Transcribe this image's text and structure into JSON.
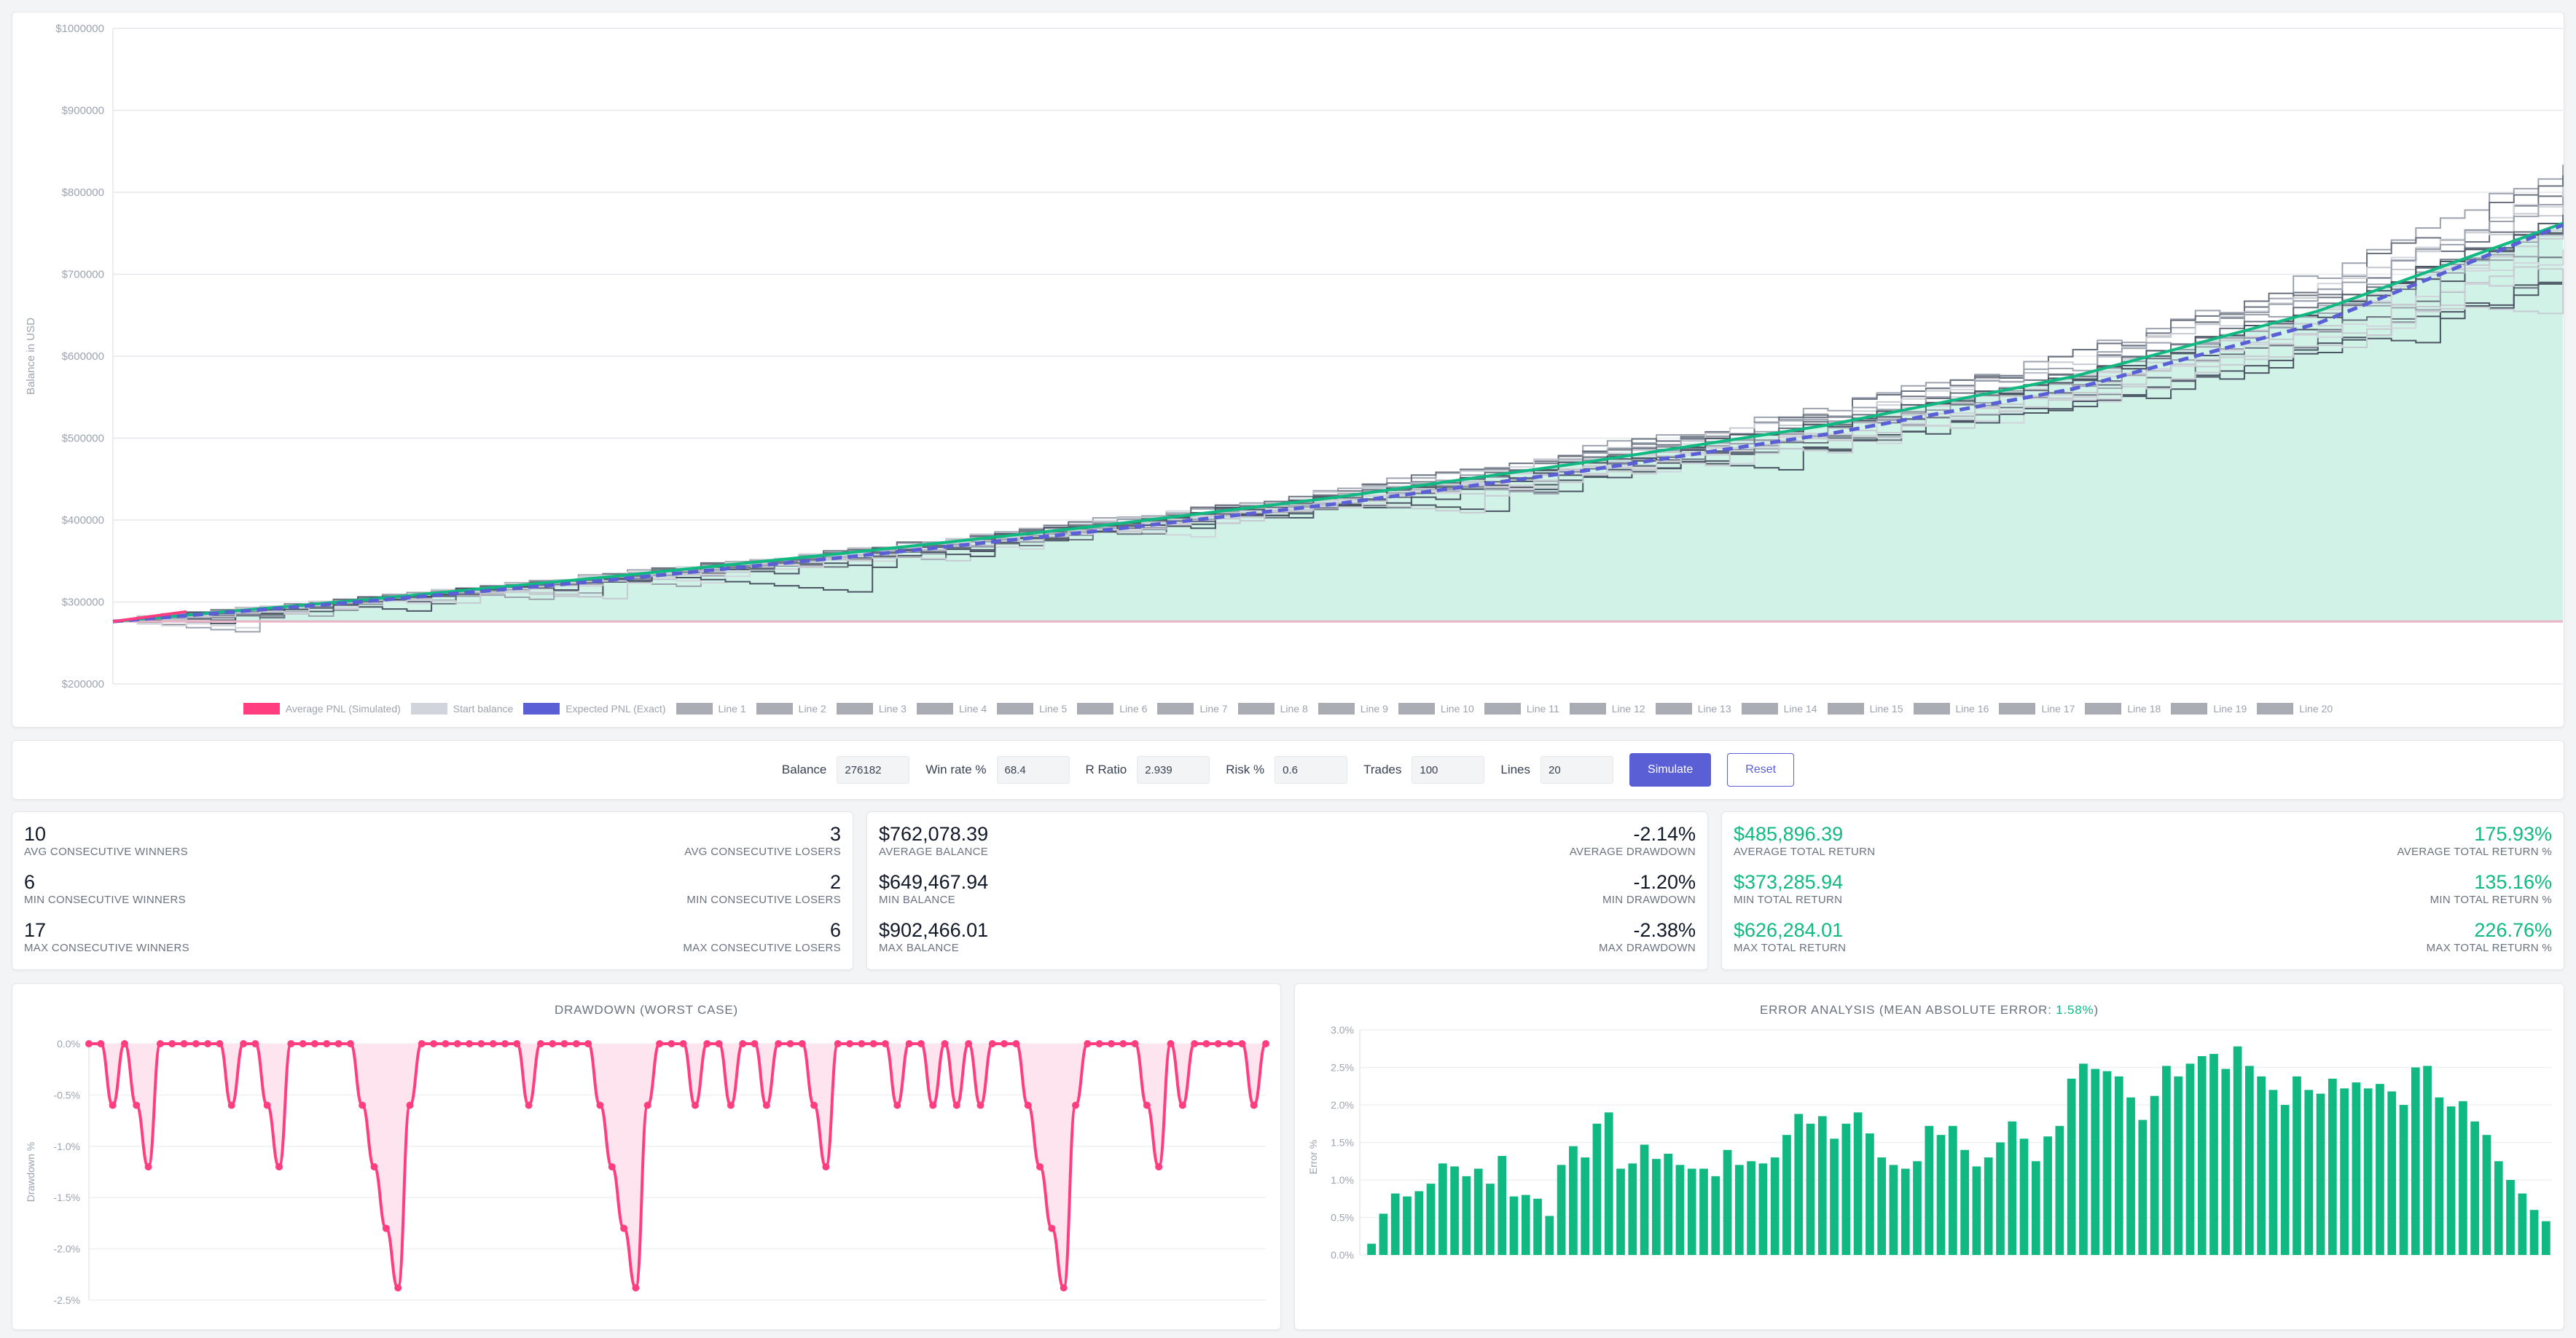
{
  "main_chart": {
    "ylabel": "Balance in USD",
    "y_ticks": [
      "$200000",
      "$300000",
      "$400000",
      "$500000",
      "$600000",
      "$700000",
      "$800000",
      "$900000",
      "$1000000"
    ],
    "legend": [
      "Average PNL (Simulated)",
      "Start balance",
      "Expected PNL (Exact)",
      "Line 1",
      "Line 2",
      "Line 3",
      "Line 4",
      "Line 5",
      "Line 6",
      "Line 7",
      "Line 8",
      "Line 9",
      "Line 10",
      "Line 11",
      "Line 12",
      "Line 13",
      "Line 14",
      "Line 15",
      "Line 16",
      "Line 17",
      "Line 18",
      "Line 19",
      "Line 20"
    ]
  },
  "controls": {
    "balance_label": "Balance",
    "balance_value": "276182",
    "winrate_label": "Win rate %",
    "winrate_value": "68.4",
    "rratio_label": "R Ratio",
    "rratio_value": "2.939",
    "risk_label": "Risk %",
    "risk_value": "0.6",
    "trades_label": "Trades",
    "trades_value": "100",
    "lines_label": "Lines",
    "lines_value": "20",
    "simulate_label": "Simulate",
    "reset_label": "Reset"
  },
  "stats": {
    "consecutive": {
      "avg_winners": "10",
      "avg_winners_label": "AVG CONSECUTIVE WINNERS",
      "avg_losers": "3",
      "avg_losers_label": "AVG CONSECUTIVE LOSERS",
      "min_winners": "6",
      "min_winners_label": "MIN CONSECUTIVE WINNERS",
      "min_losers": "2",
      "min_losers_label": "MIN CONSECUTIVE LOSERS",
      "max_winners": "17",
      "max_winners_label": "MAX CONSECUTIVE WINNERS",
      "max_losers": "6",
      "max_losers_label": "MAX CONSECUTIVE LOSERS"
    },
    "balance": {
      "avg_balance": "$762,078.39",
      "avg_balance_label": "AVERAGE BALANCE",
      "avg_dd": "-2.14%",
      "avg_dd_label": "AVERAGE DRAWDOWN",
      "min_balance": "$649,467.94",
      "min_balance_label": "MIN BALANCE",
      "min_dd": "-1.20%",
      "min_dd_label": "MIN DRAWDOWN",
      "max_balance": "$902,466.01",
      "max_balance_label": "MAX BALANCE",
      "max_dd": "-2.38%",
      "max_dd_label": "MAX DRAWDOWN"
    },
    "returns": {
      "avg_return": "$485,896.39",
      "avg_return_label": "AVERAGE TOTAL RETURN",
      "avg_return_pct": "175.93%",
      "avg_return_pct_label": "AVERAGE TOTAL RETURN %",
      "min_return": "$373,285.94",
      "min_return_label": "MIN TOTAL RETURN",
      "min_return_pct": "135.16%",
      "min_return_pct_label": "MIN TOTAL RETURN %",
      "max_return": "$626,284.01",
      "max_return_label": "MAX TOTAL RETURN",
      "max_return_pct": "226.76%",
      "max_return_pct_label": "MAX TOTAL RETURN %"
    }
  },
  "drawdown_chart": {
    "title": "DRAWDOWN (WORST CASE)",
    "ylabel": "Drawdown %",
    "y_ticks": [
      "0.0%",
      "-0.5%",
      "-1.0%",
      "-1.5%",
      "-2.0%",
      "-2.5%"
    ]
  },
  "error_chart": {
    "title_prefix": "ERROR ANALYSIS (MEAN ABSOLUTE ERROR: ",
    "title_value": "1.58%",
    "title_suffix": ")",
    "ylabel": "Error %",
    "y_ticks": [
      "0.0%",
      "0.5%",
      "1.0%",
      "1.5%",
      "2.0%",
      "2.5%",
      "3.0%"
    ]
  },
  "colors": {
    "avg_pnl": "#ff3d7f",
    "start_balance": "#d1d5db",
    "expected": "#5a5fd6",
    "avg_line": "#10b981",
    "fill_green": "#d1f2e6",
    "lines": "#9ca3af",
    "drawdown": "#ff3d7f",
    "drawdown_fill": "#fde4ee",
    "error_bar": "#10b981"
  },
  "chart_data": [
    {
      "type": "line",
      "title": "",
      "ylabel": "Balance in USD",
      "ylim": [
        200000,
        1000000
      ],
      "x": [
        0,
        10,
        20,
        30,
        40,
        50,
        60,
        70,
        80,
        90,
        100
      ],
      "series": [
        {
          "name": "Start balance",
          "values": [
            276182,
            276182,
            276182,
            276182,
            276182,
            276182,
            276182,
            276182,
            276182,
            276182,
            276182
          ]
        },
        {
          "name": "Expected PNL (Exact)",
          "values": [
            276182,
            300000,
            326000,
            355000,
            386000,
            420000,
            460000,
            505000,
            560000,
            640000,
            760000
          ]
        },
        {
          "name": "Average PNL (Simulated)",
          "values": [
            276182,
            302000,
            330000,
            360000,
            392000,
            428000,
            470000,
            516000,
            575000,
            655000,
            762078
          ]
        }
      ]
    },
    {
      "type": "area",
      "title": "DRAWDOWN (WORST CASE)",
      "ylabel": "Drawdown %",
      "ylim": [
        -2.5,
        0
      ],
      "x": [
        1,
        2,
        3,
        4,
        5,
        6,
        7,
        8,
        9,
        10,
        11,
        12,
        13,
        14,
        15,
        16,
        17,
        18,
        19,
        20,
        21,
        22,
        23,
        24,
        25,
        26,
        27,
        28,
        29,
        30,
        31,
        32,
        33,
        34,
        35,
        36,
        37,
        38,
        39,
        40,
        41,
        42,
        43,
        44,
        45,
        46,
        47,
        48,
        49,
        50,
        51,
        52,
        53,
        54,
        55,
        56,
        57,
        58,
        59,
        60,
        61,
        62,
        63,
        64,
        65,
        66,
        67,
        68,
        69,
        70,
        71,
        72,
        73,
        74,
        75,
        76,
        77,
        78,
        79,
        80,
        81,
        82,
        83,
        84,
        85,
        86,
        87,
        88,
        89,
        90,
        91,
        92,
        93,
        94,
        95,
        96,
        97,
        98,
        99,
        100
      ],
      "values": [
        0,
        0,
        -0.6,
        0,
        -0.6,
        -1.2,
        0,
        0,
        0,
        0,
        0,
        0,
        -0.6,
        0,
        0,
        -0.6,
        -1.2,
        0,
        0,
        0,
        0,
        0,
        0,
        -0.6,
        -1.2,
        -1.8,
        -2.38,
        -0.6,
        0,
        0,
        0,
        0,
        0,
        0,
        0,
        0,
        0,
        -0.6,
        0,
        0,
        0,
        0,
        0,
        -0.6,
        -1.2,
        -1.8,
        -2.38,
        -0.6,
        0,
        0,
        0,
        -0.6,
        0,
        0,
        -0.6,
        0,
        0,
        -0.6,
        0,
        0,
        0,
        -0.6,
        -1.2,
        0,
        0,
        0,
        0,
        0,
        -0.6,
        0,
        0,
        -0.6,
        0,
        -0.6,
        0,
        -0.6,
        0,
        0,
        0,
        -0.6,
        -1.2,
        -1.8,
        -2.38,
        -0.6,
        0,
        0,
        0,
        0,
        0,
        -0.6,
        -1.2,
        0,
        -0.6,
        0,
        0,
        0,
        0,
        0,
        -0.6,
        0
      ]
    },
    {
      "type": "bar",
      "title": "ERROR ANALYSIS (MEAN ABSOLUTE ERROR: 1.58%)",
      "ylabel": "Error %",
      "ylim": [
        0,
        3.0
      ],
      "categories": [
        1,
        2,
        3,
        4,
        5,
        6,
        7,
        8,
        9,
        10,
        11,
        12,
        13,
        14,
        15,
        16,
        17,
        18,
        19,
        20,
        21,
        22,
        23,
        24,
        25,
        26,
        27,
        28,
        29,
        30,
        31,
        32,
        33,
        34,
        35,
        36,
        37,
        38,
        39,
        40,
        41,
        42,
        43,
        44,
        45,
        46,
        47,
        48,
        49,
        50,
        51,
        52,
        53,
        54,
        55,
        56,
        57,
        58,
        59,
        60,
        61,
        62,
        63,
        64,
        65,
        66,
        67,
        68,
        69,
        70,
        71,
        72,
        73,
        74,
        75,
        76,
        77,
        78,
        79,
        80,
        81,
        82,
        83,
        84,
        85,
        86,
        87,
        88,
        89,
        90,
        91,
        92,
        93,
        94,
        95,
        96,
        97,
        98,
        99,
        100
      ],
      "values": [
        0.15,
        0.55,
        0.82,
        0.78,
        0.85,
        0.95,
        1.22,
        1.18,
        1.05,
        1.15,
        0.95,
        1.32,
        0.78,
        0.8,
        0.75,
        0.52,
        1.2,
        1.45,
        1.3,
        1.75,
        1.9,
        1.15,
        1.22,
        1.47,
        1.28,
        1.35,
        1.2,
        1.15,
        1.15,
        1.05,
        1.4,
        1.2,
        1.25,
        1.22,
        1.3,
        1.6,
        1.88,
        1.75,
        1.85,
        1.55,
        1.75,
        1.9,
        1.62,
        1.3,
        1.2,
        1.15,
        1.25,
        1.72,
        1.6,
        1.72,
        1.4,
        1.18,
        1.3,
        1.5,
        1.78,
        1.55,
        1.25,
        1.58,
        1.72,
        2.35,
        2.55,
        2.48,
        2.45,
        2.38,
        2.1,
        1.8,
        2.12,
        2.52,
        2.38,
        2.55,
        2.65,
        2.68,
        2.48,
        2.78,
        2.52,
        2.38,
        2.2,
        2.0,
        2.38,
        2.2,
        2.15,
        2.35,
        2.22,
        2.3,
        2.22,
        2.28,
        2.18,
        2.0,
        2.5,
        2.52,
        2.1,
        1.98,
        2.05,
        1.78,
        1.6,
        1.25,
        1.0,
        0.82,
        0.6,
        0.45
      ]
    }
  ]
}
